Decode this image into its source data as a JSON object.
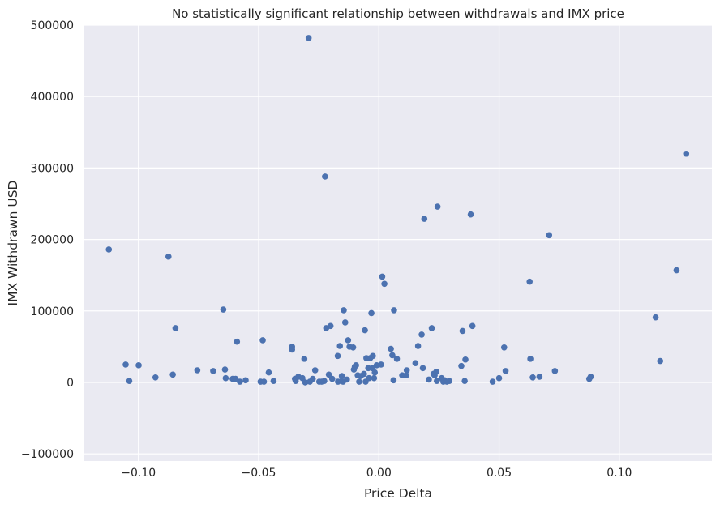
{
  "chart_data": {
    "type": "scatter",
    "title": "No statistically significant relationship between withdrawals and IMX price",
    "xlabel": "Price Delta",
    "ylabel": "IMX Withdrawn USD",
    "xlim": [
      -0.1225,
      0.1385
    ],
    "ylim": [
      -110000,
      500000
    ],
    "xticks": [
      -0.1,
      -0.05,
      0.0,
      0.05,
      0.1
    ],
    "xtick_labels": [
      "−0.10",
      "−0.05",
      "0.00",
      "0.05",
      "0.10"
    ],
    "yticks": [
      -100000,
      0,
      100000,
      200000,
      300000,
      400000,
      500000
    ],
    "ytick_labels": [
      "−100000",
      "0",
      "100000",
      "200000",
      "300000",
      "400000",
      "500000"
    ],
    "grid": true,
    "colors": {
      "background": "#eaeaf2",
      "grid": "#ffffff",
      "marker": "#4c72b0"
    },
    "points": [
      {
        "x": -0.1123,
        "y": 186000
      },
      {
        "x": -0.1053,
        "y": 25000
      },
      {
        "x": -0.1038,
        "y": 2000
      },
      {
        "x": -0.0999,
        "y": 24000
      },
      {
        "x": -0.0929,
        "y": 7000
      },
      {
        "x": -0.0875,
        "y": 176000
      },
      {
        "x": -0.0857,
        "y": 11000
      },
      {
        "x": -0.0846,
        "y": 76000
      },
      {
        "x": -0.0755,
        "y": 17000
      },
      {
        "x": -0.0689,
        "y": 16000
      },
      {
        "x": -0.0647,
        "y": 102000
      },
      {
        "x": -0.064,
        "y": 18000
      },
      {
        "x": -0.0637,
        "y": 6000
      },
      {
        "x": -0.0608,
        "y": 5000
      },
      {
        "x": -0.0596,
        "y": 5000
      },
      {
        "x": -0.059,
        "y": 57000
      },
      {
        "x": -0.0578,
        "y": 1000
      },
      {
        "x": -0.0554,
        "y": 3000
      },
      {
        "x": -0.0492,
        "y": 1000
      },
      {
        "x": -0.0483,
        "y": 59000
      },
      {
        "x": -0.0478,
        "y": 1000
      },
      {
        "x": -0.0458,
        "y": 14000
      },
      {
        "x": -0.0438,
        "y": 2000
      },
      {
        "x": -0.0361,
        "y": 50000
      },
      {
        "x": -0.0361,
        "y": 46000
      },
      {
        "x": -0.0349,
        "y": 5000
      },
      {
        "x": -0.0346,
        "y": 2000
      },
      {
        "x": -0.0335,
        "y": 8000
      },
      {
        "x": -0.0318,
        "y": 6000
      },
      {
        "x": -0.031,
        "y": 33000
      },
      {
        "x": -0.0306,
        "y": 0
      },
      {
        "x": -0.0292,
        "y": 482000
      },
      {
        "x": -0.0287,
        "y": 1000
      },
      {
        "x": -0.0275,
        "y": 5000
      },
      {
        "x": -0.0265,
        "y": 17000
      },
      {
        "x": -0.0248,
        "y": 1000
      },
      {
        "x": -0.0238,
        "y": 1000
      },
      {
        "x": -0.0227,
        "y": 2000
      },
      {
        "x": -0.0224,
        "y": 288000
      },
      {
        "x": -0.0219,
        "y": 76000
      },
      {
        "x": -0.0208,
        "y": 11000
      },
      {
        "x": -0.0201,
        "y": 79000
      },
      {
        "x": -0.0194,
        "y": 5000
      },
      {
        "x": -0.0171,
        "y": 37000
      },
      {
        "x": -0.017,
        "y": 1000
      },
      {
        "x": -0.0162,
        "y": 51000
      },
      {
        "x": -0.0155,
        "y": 2000
      },
      {
        "x": -0.0154,
        "y": 9000
      },
      {
        "x": -0.0149,
        "y": 1000
      },
      {
        "x": -0.0146,
        "y": 101000
      },
      {
        "x": -0.014,
        "y": 84000
      },
      {
        "x": -0.0133,
        "y": 4000
      },
      {
        "x": -0.0128,
        "y": 59000
      },
      {
        "x": -0.0122,
        "y": 50000
      },
      {
        "x": -0.0107,
        "y": 49000
      },
      {
        "x": -0.0104,
        "y": 18000
      },
      {
        "x": -0.01,
        "y": 22000
      },
      {
        "x": -0.0095,
        "y": 24000
      },
      {
        "x": -0.0088,
        "y": 10000
      },
      {
        "x": -0.0082,
        "y": 1000
      },
      {
        "x": -0.0075,
        "y": 9000
      },
      {
        "x": -0.0062,
        "y": 12000
      },
      {
        "x": -0.0058,
        "y": 73000
      },
      {
        "x": -0.0055,
        "y": 1000
      },
      {
        "x": -0.0052,
        "y": 34000
      },
      {
        "x": -0.0044,
        "y": 20000
      },
      {
        "x": -0.0041,
        "y": 6000
      },
      {
        "x": -0.0036,
        "y": 34000
      },
      {
        "x": -0.0031,
        "y": 97000
      },
      {
        "x": -0.0028,
        "y": 20000
      },
      {
        "x": -0.0025,
        "y": 37000
      },
      {
        "x": -0.002,
        "y": 6000
      },
      {
        "x": -0.0017,
        "y": 14000
      },
      {
        "x": -0.0009,
        "y": 24000
      },
      {
        "x": 0.0009,
        "y": 25000
      },
      {
        "x": 0.0014,
        "y": 148000
      },
      {
        "x": 0.0023,
        "y": 138000
      },
      {
        "x": 0.005,
        "y": 47000
      },
      {
        "x": 0.0056,
        "y": 38000
      },
      {
        "x": 0.0061,
        "y": 3000
      },
      {
        "x": 0.0063,
        "y": 101000
      },
      {
        "x": 0.0075,
        "y": 33000
      },
      {
        "x": 0.0097,
        "y": 10000
      },
      {
        "x": 0.0114,
        "y": 10000
      },
      {
        "x": 0.0116,
        "y": 17000
      },
      {
        "x": 0.0152,
        "y": 27000
      },
      {
        "x": 0.0163,
        "y": 51000
      },
      {
        "x": 0.0178,
        "y": 67000
      },
      {
        "x": 0.0183,
        "y": 20000
      },
      {
        "x": 0.0189,
        "y": 229000
      },
      {
        "x": 0.0208,
        "y": 4000
      },
      {
        "x": 0.022,
        "y": 76000
      },
      {
        "x": 0.0227,
        "y": 12000
      },
      {
        "x": 0.0232,
        "y": 10000
      },
      {
        "x": 0.0239,
        "y": 15000
      },
      {
        "x": 0.0241,
        "y": 2000
      },
      {
        "x": 0.0244,
        "y": 246000
      },
      {
        "x": 0.0261,
        "y": 6000
      },
      {
        "x": 0.0268,
        "y": 1000
      },
      {
        "x": 0.0273,
        "y": 3000
      },
      {
        "x": 0.0283,
        "y": 1000
      },
      {
        "x": 0.0293,
        "y": 2000
      },
      {
        "x": 0.0343,
        "y": 23000
      },
      {
        "x": 0.0348,
        "y": 72000
      },
      {
        "x": 0.0357,
        "y": 2000
      },
      {
        "x": 0.036,
        "y": 32000
      },
      {
        "x": 0.0382,
        "y": 235000
      },
      {
        "x": 0.0389,
        "y": 79000
      },
      {
        "x": 0.0473,
        "y": 1000
      },
      {
        "x": 0.05,
        "y": 6000
      },
      {
        "x": 0.0521,
        "y": 49000
      },
      {
        "x": 0.0527,
        "y": 16000
      },
      {
        "x": 0.0627,
        "y": 141000
      },
      {
        "x": 0.063,
        "y": 33000
      },
      {
        "x": 0.064,
        "y": 7000
      },
      {
        "x": 0.0668,
        "y": 8000
      },
      {
        "x": 0.0708,
        "y": 206000
      },
      {
        "x": 0.0732,
        "y": 16000
      },
      {
        "x": 0.0875,
        "y": 5000
      },
      {
        "x": 0.0881,
        "y": 8000
      },
      {
        "x": 0.1151,
        "y": 91000
      },
      {
        "x": 0.117,
        "y": 30000
      },
      {
        "x": 0.1238,
        "y": 157000
      },
      {
        "x": 0.1278,
        "y": 320000
      }
    ]
  }
}
